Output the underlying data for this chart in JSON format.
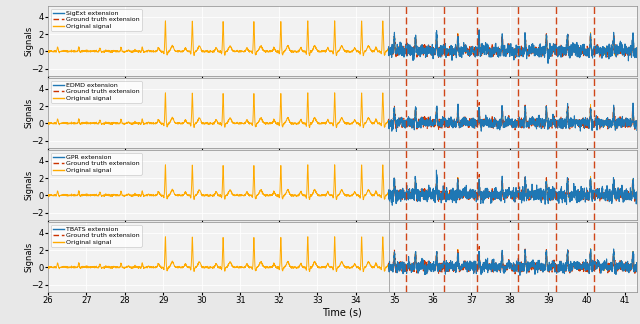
{
  "xlim": [
    26,
    41.3
  ],
  "ylim": [
    -2.8,
    5.2
  ],
  "yticks": [
    -2,
    0,
    2,
    4
  ],
  "xlabel": "Time (s)",
  "ylabel": "Signals",
  "subplot_labels": [
    "SigExt extension",
    "EDMD extension",
    "GPR extension",
    "TBATS extension"
  ],
  "legend_labels": [
    "Ground truth extension",
    "Original signal"
  ],
  "colors": {
    "blue": "#1f77b4",
    "red_dashed": "#cc3300",
    "orange": "#ffaa00"
  },
  "boundary_x": 34.85,
  "vertical_lines_x": [
    35.3,
    36.3,
    37.15,
    38.2,
    39.2,
    40.2
  ],
  "background_color": "#e8e8e8",
  "panel_bg": "#f2f2f2",
  "grid_color": "#ffffff",
  "fs": 250,
  "seed": 0
}
